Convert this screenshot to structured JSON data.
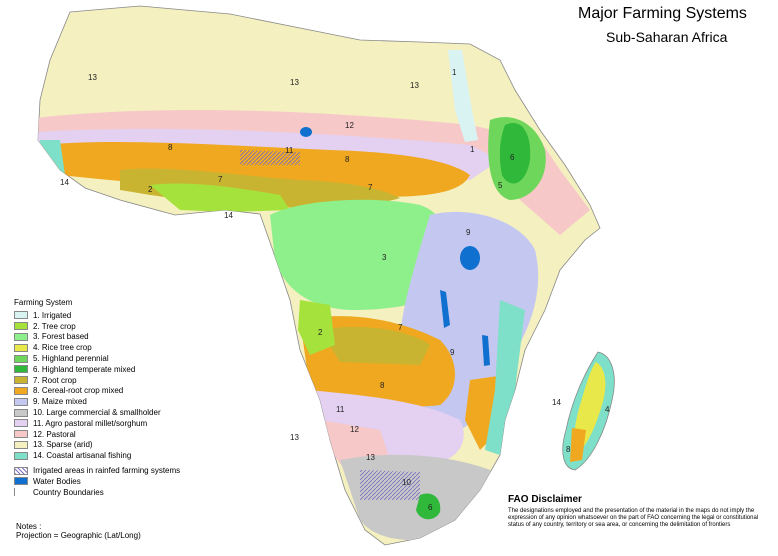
{
  "title": "Major Farming Systems",
  "subtitle": "Sub-Saharan Africa",
  "legend": {
    "heading": "Farming System",
    "items": [
      {
        "label": "1. Irrigated",
        "color": "#d9f3f3"
      },
      {
        "label": "2. Tree crop",
        "color": "#a6e23c"
      },
      {
        "label": "3. Forest based",
        "color": "#8ef08a"
      },
      {
        "label": "4. Rice tree crop",
        "color": "#e8e84a"
      },
      {
        "label": "5. Highland perennial",
        "color": "#6ed65a"
      },
      {
        "label": "6. Highland temperate mixed",
        "color": "#2fb83a"
      },
      {
        "label": "7. Root crop",
        "color": "#c8b430"
      },
      {
        "label": "8. Cereal-root crop mixed",
        "color": "#f0a820"
      },
      {
        "label": "9. Maize mixed",
        "color": "#c4c8f0"
      },
      {
        "label": "10. Large commercial & smallholder",
        "color": "#c8c8c8"
      },
      {
        "label": "11. Agro pastoral millet/sorghum",
        "color": "#e4d0f0"
      },
      {
        "label": "12. Pastoral",
        "color": "#f6c8c8"
      },
      {
        "label": "13. Sparse (arid)",
        "color": "#f4f0c0"
      },
      {
        "label": "14. Coastal artisanal fishing",
        "color": "#7ee0c8"
      }
    ],
    "extras": [
      {
        "label": "Irrigated areas in rainfed farming systems"
      },
      {
        "label": "Water Bodies",
        "color": "#1070d0"
      },
      {
        "label": "Country Boundaries"
      }
    ]
  },
  "notes": {
    "heading": "Notes :",
    "projection": "Projection = Geographic (Lat/Long)"
  },
  "disclaimer": {
    "title": "FAO Disclaimer",
    "text": "The designations employed and the presentation of the material in the maps do not imply the expression of any opinion whatsoever on the part of FAO concerning the legal or constitutional status of any country, territory or sea area, or concerning the delimitation of frontiers"
  },
  "map_labels": {
    "z13": "13",
    "z12": "12",
    "z11": "11",
    "z8": "8",
    "z7": "7",
    "z3": "3",
    "z9": "9",
    "z6": "6",
    "z5": "5",
    "z4": "4",
    "z2": "2",
    "z1": "1",
    "z14": "14",
    "z10": "10"
  }
}
